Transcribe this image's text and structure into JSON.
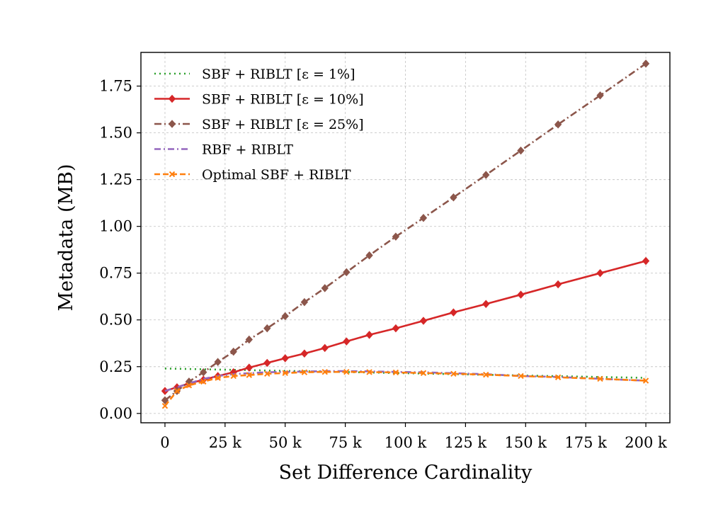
{
  "chart_data": {
    "type": "line",
    "title": "",
    "xlabel": "Set Difference Cardinality",
    "ylabel": "Metadata (MB)",
    "xlim": [
      -10000,
      210000
    ],
    "ylim": [
      -0.05,
      1.93
    ],
    "grid": true,
    "legend_position": "top-left",
    "x_ticks": [
      {
        "value": 0,
        "label": "0"
      },
      {
        "value": 25000,
        "label": "25 k"
      },
      {
        "value": 50000,
        "label": "50 k"
      },
      {
        "value": 75000,
        "label": "75 k"
      },
      {
        "value": 100000,
        "label": "100 k"
      },
      {
        "value": 125000,
        "label": "125 k"
      },
      {
        "value": 150000,
        "label": "150 k"
      },
      {
        "value": 175000,
        "label": "175 k"
      },
      {
        "value": 200000,
        "label": "200 k"
      }
    ],
    "y_ticks": [
      {
        "value": 0.0,
        "label": "0.00"
      },
      {
        "value": 0.25,
        "label": "0.25"
      },
      {
        "value": 0.5,
        "label": "0.50"
      },
      {
        "value": 0.75,
        "label": "0.75"
      },
      {
        "value": 1.0,
        "label": "1.00"
      },
      {
        "value": 1.25,
        "label": "1.25"
      },
      {
        "value": 1.5,
        "label": "1.50"
      },
      {
        "value": 1.75,
        "label": "1.75"
      }
    ],
    "series": [
      {
        "name": "SBF + RIBLT [ε = 1%]",
        "color": "#2ca02c",
        "dash": "2 5",
        "marker": "none",
        "points": [
          [
            0,
            0.24
          ],
          [
            200000,
            0.19
          ]
        ]
      },
      {
        "name": "SBF + RIBLT [ε = 10%]",
        "color": "#d62728",
        "dash": "",
        "marker": "diamond",
        "points": [
          [
            0,
            0.12
          ],
          [
            5000,
            0.14
          ],
          [
            10000,
            0.16
          ],
          [
            16000,
            0.18
          ],
          [
            22000,
            0.2
          ],
          [
            28500,
            0.22
          ],
          [
            35000,
            0.245
          ],
          [
            42500,
            0.27
          ],
          [
            50000,
            0.295
          ],
          [
            58000,
            0.32
          ],
          [
            66500,
            0.35
          ],
          [
            75500,
            0.385
          ],
          [
            85000,
            0.42
          ],
          [
            96000,
            0.455
          ],
          [
            107500,
            0.495
          ],
          [
            120000,
            0.54
          ],
          [
            133500,
            0.585
          ],
          [
            148000,
            0.635
          ],
          [
            163500,
            0.69
          ],
          [
            181000,
            0.75
          ],
          [
            200000,
            0.815
          ]
        ]
      },
      {
        "name": "SBF + RIBLT [ε = 25%]",
        "color": "#8c564b",
        "dash": "10 4 2 4",
        "marker": "diamond",
        "points": [
          [
            0,
            0.07
          ],
          [
            5000,
            0.12
          ],
          [
            10000,
            0.17
          ],
          [
            16000,
            0.22
          ],
          [
            22000,
            0.275
          ],
          [
            28500,
            0.33
          ],
          [
            35000,
            0.395
          ],
          [
            42500,
            0.455
          ],
          [
            50000,
            0.52
          ],
          [
            58000,
            0.595
          ],
          [
            66500,
            0.67
          ],
          [
            75500,
            0.755
          ],
          [
            85000,
            0.845
          ],
          [
            96000,
            0.945
          ],
          [
            107500,
            1.045
          ],
          [
            120000,
            1.155
          ],
          [
            133500,
            1.275
          ],
          [
            148000,
            1.405
          ],
          [
            163500,
            1.545
          ],
          [
            181000,
            1.7
          ],
          [
            200000,
            1.87
          ]
        ]
      },
      {
        "name": "RBF + RIBLT",
        "color": "#9467bd",
        "dash": "9 4 2 4",
        "marker": "none",
        "points": [
          [
            0,
            0.12
          ],
          [
            5000,
            0.14
          ],
          [
            10000,
            0.16
          ],
          [
            16000,
            0.185
          ],
          [
            22000,
            0.2
          ],
          [
            28500,
            0.21
          ],
          [
            35000,
            0.215
          ],
          [
            42500,
            0.22
          ],
          [
            50000,
            0.222
          ],
          [
            58000,
            0.224
          ],
          [
            66500,
            0.226
          ],
          [
            75500,
            0.226
          ],
          [
            85000,
            0.225
          ],
          [
            96000,
            0.222
          ],
          [
            107500,
            0.22
          ],
          [
            120000,
            0.215
          ],
          [
            133500,
            0.21
          ],
          [
            148000,
            0.2
          ],
          [
            163500,
            0.195
          ],
          [
            181000,
            0.185
          ],
          [
            200000,
            0.175
          ]
        ]
      },
      {
        "name": "Optimal SBF + RIBLT",
        "color": "#ff7f0e",
        "dash": "8 4",
        "marker": "x",
        "points": [
          [
            0,
            0.04
          ],
          [
            5000,
            0.12
          ],
          [
            10000,
            0.15
          ],
          [
            16000,
            0.17
          ],
          [
            22000,
            0.19
          ],
          [
            28500,
            0.2
          ],
          [
            35000,
            0.205
          ],
          [
            42500,
            0.212
          ],
          [
            50000,
            0.216
          ],
          [
            58000,
            0.22
          ],
          [
            66500,
            0.222
          ],
          [
            75500,
            0.222
          ],
          [
            85000,
            0.221
          ],
          [
            96000,
            0.219
          ],
          [
            107500,
            0.216
          ],
          [
            120000,
            0.212
          ],
          [
            133500,
            0.207
          ],
          [
            148000,
            0.2
          ],
          [
            163500,
            0.193
          ],
          [
            181000,
            0.185
          ],
          [
            200000,
            0.175
          ]
        ]
      }
    ]
  }
}
